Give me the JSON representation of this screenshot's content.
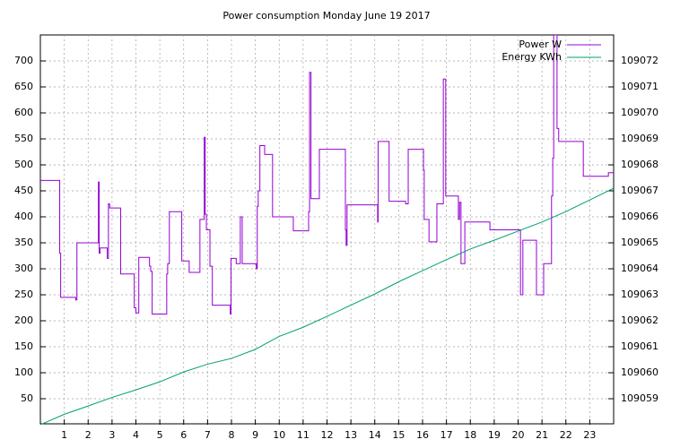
{
  "chart_data": {
    "type": "line",
    "title": "Power consumption Monday June 19 2017",
    "xlim": [
      0,
      24
    ],
    "xticks": [
      1,
      2,
      3,
      4,
      5,
      6,
      7,
      8,
      9,
      10,
      11,
      12,
      13,
      14,
      15,
      16,
      17,
      18,
      19,
      20,
      21,
      22,
      23
    ],
    "ylim": [
      0,
      750
    ],
    "yticks": [
      50,
      100,
      150,
      200,
      250,
      300,
      350,
      400,
      450,
      500,
      550,
      600,
      650,
      700
    ],
    "y2lim": [
      109058,
      109073
    ],
    "y2ticks": [
      109059,
      109060,
      109061,
      109062,
      109063,
      109064,
      109065,
      109066,
      109067,
      109068,
      109069,
      109070,
      109071,
      109072
    ],
    "grid": true,
    "legend": "top-right",
    "series": [
      {
        "name": "Power W",
        "color": "#9400d3",
        "steps": true,
        "x": [
          0,
          0.81,
          0.85,
          0.89,
          1.48,
          1.53,
          2.43,
          2.46,
          2.5,
          2.8,
          2.85,
          2.9,
          3.0,
          3.36,
          3.93,
          4.0,
          4.05,
          4.12,
          4.57,
          4.62,
          4.68,
          5.29,
          5.33,
          5.36,
          5.4,
          5.92,
          6.23,
          6.68,
          6.72,
          6.86,
          6.9,
          6.95,
          7.1,
          7.2,
          7.95,
          7.98,
          8.0,
          8.2,
          8.37,
          8.45,
          9.04,
          9.08,
          9.12,
          9.15,
          9.19,
          9.39,
          9.72,
          10.59,
          11.23,
          11.27,
          11.3,
          11.33,
          11.68,
          12.77,
          12.8,
          12.84,
          14.12,
          14.14,
          14.16,
          14.6,
          15.29,
          15.33,
          15.4,
          16.04,
          16.07,
          16.1,
          16.27,
          16.6,
          16.87,
          16.94,
          16.97,
          17.5,
          17.55,
          17.58,
          17.61,
          17.77,
          18.82,
          20.1,
          20.13,
          20.2,
          20.77,
          21.07,
          21.4,
          21.45,
          21.49,
          21.6,
          21.63,
          21.7,
          22.73,
          23.78,
          24.07
        ],
        "values": [
          470,
          330,
          245,
          245,
          240,
          350,
          467,
          330,
          340,
          320,
          425,
          417,
          417,
          290,
          225,
          215,
          215,
          322,
          305,
          295,
          213,
          290,
          310,
          310,
          410,
          315,
          293,
          395,
          395,
          553,
          405,
          375,
          305,
          230,
          213,
          320,
          320,
          310,
          400,
          310,
          300,
          420,
          450,
          450,
          537,
          520,
          400,
          373,
          410,
          678,
          678,
          435,
          530,
          375,
          345,
          423,
          390,
          545,
          545,
          430,
          425,
          425,
          530,
          490,
          395,
          395,
          352,
          425,
          665,
          665,
          440,
          395,
          428,
          428,
          310,
          390,
          375,
          250,
          250,
          355,
          250,
          310,
          440,
          513,
          750,
          750,
          570,
          545,
          478,
          485,
          485
        ]
      },
      {
        "name": "Energy KWh",
        "color": "#009e73",
        "axis": "y2",
        "x": [
          0,
          1,
          2,
          3,
          4,
          5,
          6,
          7,
          8,
          9,
          10,
          11,
          12,
          13,
          14,
          15,
          16,
          17,
          18,
          19,
          20,
          21,
          22,
          23,
          24
        ],
        "values": [
          109058,
          109058.4,
          109058.72,
          109059.05,
          109059.34,
          109059.65,
          109060.03,
          109060.33,
          109060.55,
          109060.9,
          109061.4,
          109061.75,
          109062.17,
          109062.6,
          109063.03,
          109063.5,
          109063.93,
          109064.35,
          109064.76,
          109065.1,
          109065.45,
          109065.8,
          109066.2,
          109066.65,
          109067.1
        ]
      }
    ]
  }
}
